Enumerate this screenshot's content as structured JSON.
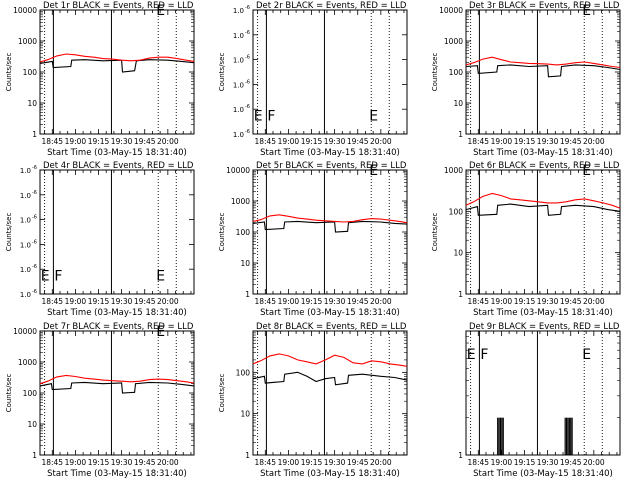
{
  "chart_data": [
    {
      "type": "line",
      "title": "Det 1r BLACK = Events, RED = LLD",
      "xlabel": "Start Time (03-May-15 18:31:40)",
      "ylabel": "Counts/sec",
      "yscale": "log",
      "ylim": [
        1,
        10000
      ],
      "xlim": [
        18.617,
        20.283
      ],
      "x_ticks": [
        "18:45",
        "19:00",
        "19:15",
        "19:30",
        "19:45",
        "20:00"
      ],
      "y_ticks": [
        "1",
        "10",
        "100",
        "1000",
        "10000"
      ],
      "series": [
        {
          "name": "Events",
          "color": "#000000",
          "x": [
            18.617,
            18.75,
            18.76,
            18.95,
            18.96,
            19.1,
            19.3,
            19.5,
            19.51,
            19.64,
            19.66,
            19.8,
            20.0,
            20.15,
            20.283
          ],
          "y": [
            190,
            220,
            140,
            150,
            240,
            250,
            230,
            240,
            100,
            110,
            230,
            250,
            240,
            220,
            200
          ]
        },
        {
          "name": "LLD",
          "color": "#ff0000",
          "x": [
            18.617,
            18.7,
            18.8,
            18.9,
            19.0,
            19.1,
            19.2,
            19.3,
            19.4,
            19.5,
            19.6,
            19.7,
            19.8,
            19.9,
            20.0,
            20.1,
            20.2,
            20.283
          ],
          "y": [
            210,
            250,
            330,
            380,
            360,
            320,
            300,
            270,
            260,
            240,
            230,
            240,
            280,
            300,
            300,
            270,
            240,
            220
          ]
        }
      ],
      "markers": [
        {
          "kind": "solid",
          "x": 18.762
        },
        {
          "kind": "solid",
          "x": 19.39
        },
        {
          "kind": "dotted",
          "x": 18.667
        },
        {
          "kind": "dotted",
          "x": 19.896
        },
        {
          "kind": "dotted",
          "x": 20.091
        }
      ],
      "marker_letters": [
        {
          "text": "E",
          "x": 19.875,
          "y": 10000
        }
      ]
    },
    {
      "type": "line",
      "title": "Det 2r BLACK = Events, RED = LLD",
      "xlabel": "Start Time (03-May-15 18:31:40)",
      "ylabel": "Counts/sec",
      "yscale": "log",
      "ylim": [
        1,
        1.000001
      ],
      "xlim": [
        18.617,
        20.283
      ],
      "x_ticks": [
        "18:45",
        "19:00",
        "19:15",
        "19:30",
        "19:45",
        "20:00"
      ],
      "y_ticks": [
        "1.0",
        "1.0",
        "1.0",
        "1.0",
        "1.0",
        "1.0"
      ],
      "series": [],
      "markers": [
        {
          "kind": "solid",
          "x": 18.762
        },
        {
          "kind": "solid",
          "x": 19.39
        },
        {
          "kind": "dotted",
          "x": 18.667
        },
        {
          "kind": "dotted",
          "x": 19.896
        },
        {
          "kind": "dotted",
          "x": 20.091
        }
      ],
      "marker_letters": [
        {
          "text": "E",
          "x": 18.625,
          "y": 1.00000015
        },
        {
          "text": "F",
          "x": 18.772,
          "y": 1.00000015
        },
        {
          "text": "E",
          "x": 19.875,
          "y": 1.00000015
        }
      ]
    },
    {
      "type": "line",
      "title": "Det 3r BLACK = Events, RED = LLD",
      "xlabel": "Start Time (03-May-15 18:31:40)",
      "ylabel": "Counts/sec",
      "yscale": "log",
      "ylim": [
        1,
        10000
      ],
      "xlim": [
        18.617,
        20.283
      ],
      "x_ticks": [
        "18:45",
        "19:00",
        "19:15",
        "19:30",
        "19:45",
        "20:00"
      ],
      "y_ticks": [
        "1",
        "10",
        "100",
        "1000",
        "10000"
      ],
      "series": [
        {
          "name": "Events",
          "color": "#000000",
          "x": [
            18.617,
            18.74,
            18.75,
            18.95,
            18.96,
            19.1,
            19.3,
            19.5,
            19.51,
            19.64,
            19.65,
            19.8,
            20.0,
            20.15,
            20.283
          ],
          "y": [
            150,
            160,
            90,
            100,
            160,
            170,
            150,
            160,
            70,
            75,
            150,
            170,
            160,
            140,
            120
          ]
        },
        {
          "name": "LLD",
          "color": "#ff0000",
          "x": [
            18.617,
            18.7,
            18.8,
            18.9,
            19.0,
            19.1,
            19.2,
            19.3,
            19.4,
            19.5,
            19.6,
            19.7,
            19.8,
            19.9,
            20.0,
            20.1,
            20.2,
            20.283
          ],
          "y": [
            170,
            200,
            260,
            300,
            250,
            210,
            200,
            190,
            185,
            180,
            170,
            180,
            200,
            210,
            190,
            170,
            150,
            140
          ]
        }
      ],
      "markers": [
        {
          "kind": "solid",
          "x": 18.762
        },
        {
          "kind": "solid",
          "x": 19.39
        },
        {
          "kind": "dotted",
          "x": 18.667
        },
        {
          "kind": "dotted",
          "x": 19.896
        },
        {
          "kind": "dotted",
          "x": 20.091
        }
      ],
      "marker_letters": [
        {
          "text": "E",
          "x": 19.875,
          "y": 10000
        }
      ]
    },
    {
      "type": "line",
      "title": "Det 4r BLACK = Events, RED = LLD",
      "xlabel": "Start Time (03-May-15 18:31:40)",
      "ylabel": "Counts/sec",
      "yscale": "log",
      "ylim": [
        1,
        1.000001
      ],
      "xlim": [
        18.617,
        20.283
      ],
      "x_ticks": [
        "18:45",
        "19:00",
        "19:15",
        "19:30",
        "19:45",
        "20:00"
      ],
      "y_ticks": [
        "1.0",
        "1.0",
        "1.0",
        "1.0",
        "1.0",
        "1.0"
      ],
      "series": [],
      "markers": [
        {
          "kind": "solid",
          "x": 18.762
        },
        {
          "kind": "solid",
          "x": 19.39
        },
        {
          "kind": "dotted",
          "x": 18.667
        },
        {
          "kind": "dotted",
          "x": 19.896
        },
        {
          "kind": "dotted",
          "x": 20.091
        }
      ],
      "marker_letters": [
        {
          "text": "E",
          "x": 18.625,
          "y": 1.00000015
        },
        {
          "text": "F",
          "x": 18.772,
          "y": 1.00000015
        },
        {
          "text": "E",
          "x": 19.875,
          "y": 1.00000015
        }
      ]
    },
    {
      "type": "line",
      "title": "Det 5r BLACK = Events, RED = LLD",
      "xlabel": "Start Time (03-May-15 18:31:40)",
      "ylabel": "Counts/sec",
      "yscale": "log",
      "ylim": [
        1,
        10000
      ],
      "xlim": [
        18.617,
        20.283
      ],
      "x_ticks": [
        "18:45",
        "19:00",
        "19:15",
        "19:30",
        "19:45",
        "20:00"
      ],
      "y_ticks": [
        "1",
        "10",
        "100",
        "1000",
        "10000"
      ],
      "series": [
        {
          "name": "Events",
          "color": "#000000",
          "x": [
            18.617,
            18.74,
            18.75,
            18.95,
            18.96,
            19.1,
            19.3,
            19.5,
            19.51,
            19.64,
            19.65,
            19.8,
            20.0,
            20.15,
            20.283
          ],
          "y": [
            190,
            210,
            120,
            130,
            210,
            220,
            200,
            210,
            100,
            105,
            200,
            220,
            210,
            190,
            180
          ]
        },
        {
          "name": "LLD",
          "color": "#ff0000",
          "x": [
            18.617,
            18.7,
            18.8,
            18.9,
            19.0,
            19.1,
            19.2,
            19.3,
            19.4,
            19.5,
            19.6,
            19.7,
            19.8,
            19.9,
            20.0,
            20.1,
            20.2,
            20.283
          ],
          "y": [
            220,
            250,
            330,
            360,
            320,
            280,
            260,
            240,
            230,
            220,
            210,
            220,
            250,
            270,
            260,
            240,
            220,
            200
          ]
        }
      ],
      "markers": [
        {
          "kind": "solid",
          "x": 18.762
        },
        {
          "kind": "solid",
          "x": 19.39
        },
        {
          "kind": "dotted",
          "x": 18.667
        },
        {
          "kind": "dotted",
          "x": 19.896
        },
        {
          "kind": "dotted",
          "x": 20.091
        }
      ],
      "marker_letters": [
        {
          "text": "E",
          "x": 19.875,
          "y": 10000
        }
      ]
    },
    {
      "type": "line",
      "title": "Det 6r BLACK = Events, RED = LLD",
      "xlabel": "Start Time (03-May-15 18:31:40)",
      "ylabel": "Counts/sec",
      "yscale": "log",
      "ylim": [
        1,
        1000
      ],
      "xlim": [
        18.617,
        20.283
      ],
      "x_ticks": [
        "18:45",
        "19:00",
        "19:15",
        "19:30",
        "19:45",
        "20:00"
      ],
      "y_ticks": [
        "1",
        "10",
        "100",
        "1000"
      ],
      "series": [
        {
          "name": "Events",
          "color": "#000000",
          "x": [
            18.617,
            18.74,
            18.75,
            18.95,
            18.96,
            19.1,
            19.3,
            19.5,
            19.51,
            19.64,
            19.65,
            19.8,
            20.0,
            20.15,
            20.283
          ],
          "y": [
            110,
            130,
            80,
            85,
            140,
            150,
            130,
            140,
            80,
            85,
            130,
            140,
            130,
            110,
            100
          ]
        },
        {
          "name": "LLD",
          "color": "#ff0000",
          "x": [
            18.617,
            18.7,
            18.8,
            18.9,
            19.0,
            19.1,
            19.2,
            19.3,
            19.4,
            19.5,
            19.6,
            19.7,
            19.8,
            19.9,
            20.0,
            20.1,
            20.2,
            20.283
          ],
          "y": [
            140,
            170,
            230,
            270,
            240,
            200,
            190,
            180,
            170,
            160,
            160,
            170,
            190,
            200,
            180,
            160,
            140,
            120
          ]
        }
      ],
      "markers": [
        {
          "kind": "solid",
          "x": 18.762
        },
        {
          "kind": "solid",
          "x": 19.39
        },
        {
          "kind": "dotted",
          "x": 18.667
        },
        {
          "kind": "dotted",
          "x": 19.896
        },
        {
          "kind": "dotted",
          "x": 20.091
        }
      ],
      "marker_letters": [
        {
          "text": "E",
          "x": 19.875,
          "y": 1000
        }
      ]
    },
    {
      "type": "line",
      "title": "Det 7r BLACK = Events, RED = LLD",
      "xlabel": "Start Time (03-May-15 18:31:40)",
      "ylabel": "Counts/sec",
      "yscale": "log",
      "ylim": [
        1,
        10000
      ],
      "xlim": [
        18.617,
        20.283
      ],
      "x_ticks": [
        "18:45",
        "19:00",
        "19:15",
        "19:30",
        "19:45",
        "20:00"
      ],
      "y_ticks": [
        "1",
        "10",
        "100",
        "1000",
        "10000"
      ],
      "series": [
        {
          "name": "Events",
          "color": "#000000",
          "x": [
            18.617,
            18.74,
            18.75,
            18.95,
            18.96,
            19.1,
            19.3,
            19.5,
            19.51,
            19.64,
            19.65,
            19.8,
            20.0,
            20.15,
            20.283
          ],
          "y": [
            170,
            200,
            130,
            140,
            210,
            220,
            200,
            210,
            100,
            105,
            200,
            220,
            210,
            190,
            170
          ]
        },
        {
          "name": "LLD",
          "color": "#ff0000",
          "x": [
            18.617,
            18.7,
            18.8,
            18.9,
            19.0,
            19.1,
            19.2,
            19.3,
            19.4,
            19.5,
            19.6,
            19.7,
            19.8,
            19.9,
            20.0,
            20.1,
            20.2,
            20.283
          ],
          "y": [
            200,
            240,
            330,
            370,
            340,
            300,
            280,
            260,
            250,
            240,
            230,
            240,
            270,
            280,
            270,
            250,
            230,
            210
          ]
        }
      ],
      "markers": [
        {
          "kind": "solid",
          "x": 18.762
        },
        {
          "kind": "solid",
          "x": 19.39
        },
        {
          "kind": "dotted",
          "x": 18.667
        },
        {
          "kind": "dotted",
          "x": 19.896
        },
        {
          "kind": "dotted",
          "x": 20.091
        }
      ],
      "marker_letters": [
        {
          "text": "E",
          "x": 19.875,
          "y": 10000
        }
      ]
    },
    {
      "type": "line",
      "title": "Det 8r BLACK = Events, RED = LLD",
      "xlabel": "Start Time (03-May-15 18:31:40)",
      "ylabel": "Counts/sec",
      "yscale": "log",
      "ylim": [
        1,
        1000
      ],
      "xlim": [
        18.617,
        20.283
      ],
      "x_ticks": [
        "18:45",
        "19:00",
        "19:15",
        "19:30",
        "19:45",
        "20:00"
      ],
      "y_ticks": [
        "1",
        "10",
        "100"
      ],
      "series": [
        {
          "name": "Events",
          "color": "#000000",
          "x": [
            18.617,
            18.74,
            18.75,
            18.95,
            18.96,
            19.1,
            19.2,
            19.3,
            19.4,
            19.5,
            19.51,
            19.64,
            19.65,
            19.8,
            20.0,
            20.15,
            20.283
          ],
          "y": [
            70,
            80,
            55,
            60,
            90,
            100,
            80,
            60,
            70,
            75,
            50,
            55,
            85,
            90,
            80,
            75,
            65
          ]
        },
        {
          "name": "LLD",
          "color": "#ff0000",
          "x": [
            18.617,
            18.7,
            18.8,
            18.9,
            19.0,
            19.1,
            19.2,
            19.3,
            19.4,
            19.5,
            19.6,
            19.7,
            19.8,
            19.9,
            20.0,
            20.1,
            20.2,
            20.283
          ],
          "y": [
            160,
            190,
            250,
            280,
            250,
            200,
            180,
            160,
            200,
            260,
            230,
            170,
            160,
            190,
            180,
            160,
            150,
            140
          ]
        }
      ],
      "markers": [
        {
          "kind": "solid",
          "x": 18.762
        },
        {
          "kind": "solid",
          "x": 19.39
        },
        {
          "kind": "dotted",
          "x": 18.667
        },
        {
          "kind": "dotted",
          "x": 19.896
        },
        {
          "kind": "dotted",
          "x": 20.091
        }
      ],
      "marker_letters": []
    },
    {
      "type": "line",
      "title": "Det 9r BLACK = Events, RED = LLD",
      "xlabel": "Start Time (03-May-15 18:31:40)",
      "ylabel": "",
      "yscale": "log",
      "ylim": [
        1,
        10
      ],
      "xlim": [
        18.617,
        20.283
      ],
      "x_ticks": [
        "18:45",
        "19:00",
        "19:15",
        "19:30",
        "19:45",
        "20:00"
      ],
      "y_ticks": [
        "1"
      ],
      "series": [
        {
          "name": "Events",
          "color": "#000000",
          "kind": "spikes",
          "x": [
            18.96,
            18.975,
            18.99,
            19.005,
            19.02,
            19.69,
            19.705,
            19.72,
            19.735,
            19.75,
            19.765
          ],
          "y": [
            2,
            2,
            2,
            2,
            2,
            2,
            2,
            2,
            2,
            2,
            2
          ]
        }
      ],
      "markers": [
        {
          "kind": "solid",
          "x": 18.762
        },
        {
          "kind": "solid",
          "x": 19.39
        },
        {
          "kind": "dotted",
          "x": 18.667
        },
        {
          "kind": "dotted",
          "x": 19.896
        },
        {
          "kind": "dotted",
          "x": 20.091
        }
      ],
      "marker_letters": [
        {
          "text": "E",
          "x": 18.625,
          "y": 6.5
        },
        {
          "text": "F",
          "x": 18.772,
          "y": 6.5
        },
        {
          "text": "E",
          "x": 19.875,
          "y": 6.5
        }
      ]
    }
  ]
}
